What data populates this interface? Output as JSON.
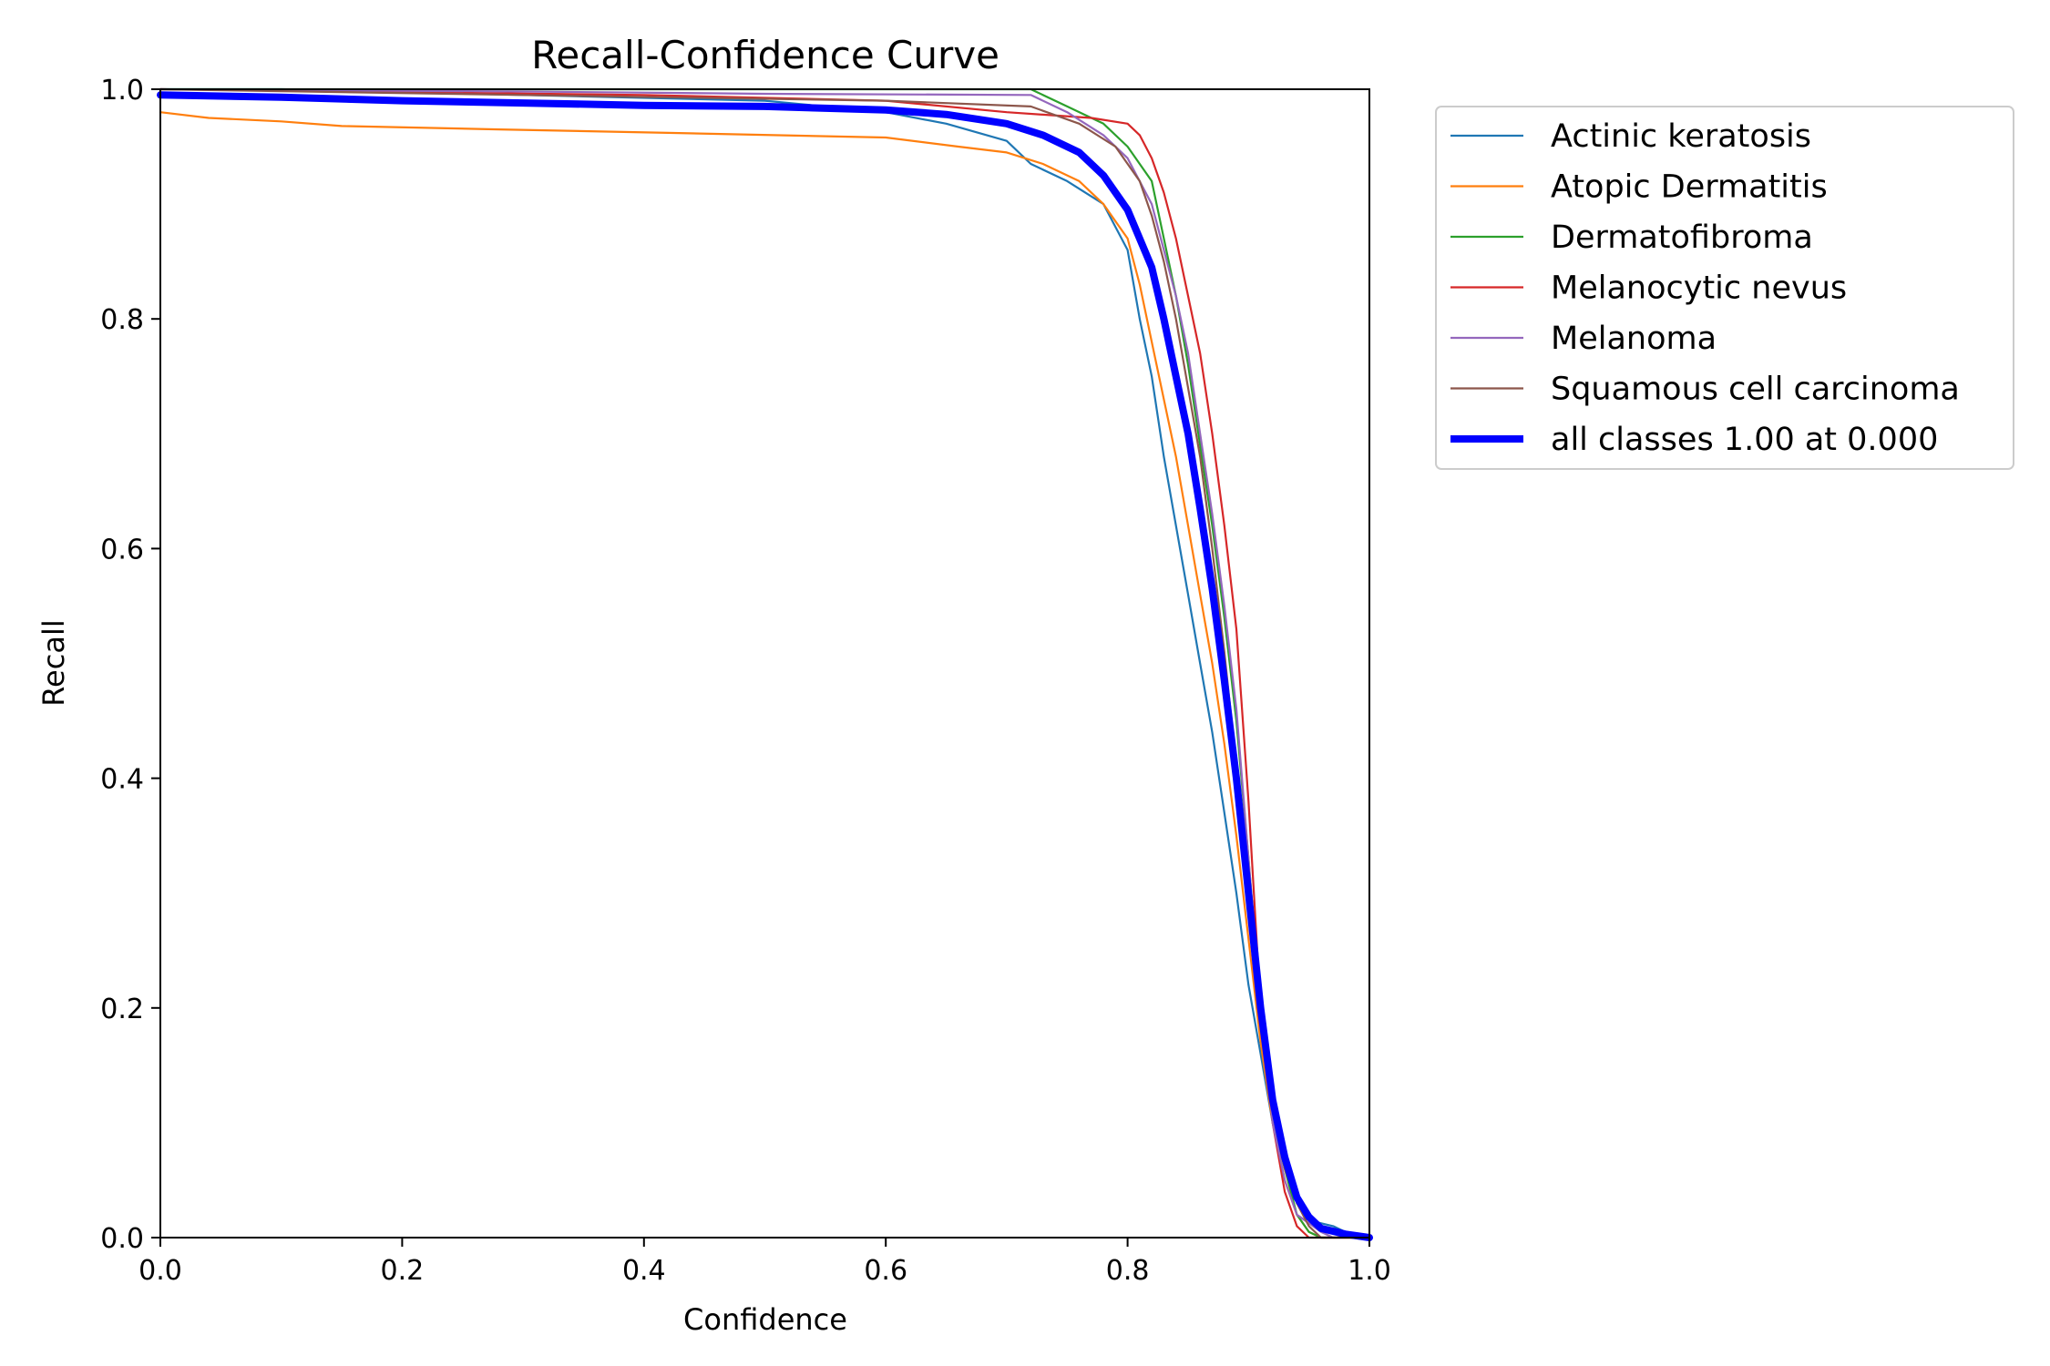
{
  "chart_data": {
    "type": "line",
    "title": "Recall-Confidence Curve",
    "xlabel": "Confidence",
    "ylabel": "Recall",
    "xlim": [
      0.0,
      1.0
    ],
    "ylim": [
      0.0,
      1.0
    ],
    "x_ticks": [
      "0.0",
      "0.2",
      "0.4",
      "0.6",
      "0.8",
      "1.0"
    ],
    "y_ticks": [
      "0.0",
      "0.2",
      "0.4",
      "0.6",
      "0.8",
      "1.0"
    ],
    "grid": false,
    "legend_placement": "outside-top-right",
    "series": [
      {
        "name": "Actinic keratosis",
        "color": "#1f77b4",
        "points": [
          [
            0.0,
            1.0
          ],
          [
            0.1,
            1.0
          ],
          [
            0.3,
            0.995
          ],
          [
            0.5,
            0.99
          ],
          [
            0.6,
            0.98
          ],
          [
            0.65,
            0.97
          ],
          [
            0.7,
            0.955
          ],
          [
            0.72,
            0.935
          ],
          [
            0.75,
            0.92
          ],
          [
            0.78,
            0.9
          ],
          [
            0.8,
            0.86
          ],
          [
            0.81,
            0.8
          ],
          [
            0.82,
            0.75
          ],
          [
            0.83,
            0.68
          ],
          [
            0.84,
            0.62
          ],
          [
            0.85,
            0.56
          ],
          [
            0.86,
            0.5
          ],
          [
            0.87,
            0.44
          ],
          [
            0.88,
            0.37
          ],
          [
            0.89,
            0.3
          ],
          [
            0.9,
            0.22
          ],
          [
            0.91,
            0.16
          ],
          [
            0.92,
            0.1
          ],
          [
            0.93,
            0.06
          ],
          [
            0.94,
            0.03
          ],
          [
            0.95,
            0.015
          ],
          [
            0.97,
            0.01
          ],
          [
            0.98,
            0.005
          ],
          [
            1.0,
            0.0
          ]
        ]
      },
      {
        "name": "Atopic Dermatitis",
        "color": "#ff7f0e",
        "points": [
          [
            0.0,
            0.98
          ],
          [
            0.04,
            0.975
          ],
          [
            0.1,
            0.972
          ],
          [
            0.15,
            0.968
          ],
          [
            0.28,
            0.965
          ],
          [
            0.42,
            0.962
          ],
          [
            0.6,
            0.958
          ],
          [
            0.66,
            0.95
          ],
          [
            0.7,
            0.945
          ],
          [
            0.73,
            0.935
          ],
          [
            0.76,
            0.92
          ],
          [
            0.78,
            0.9
          ],
          [
            0.8,
            0.87
          ],
          [
            0.81,
            0.83
          ],
          [
            0.82,
            0.78
          ],
          [
            0.83,
            0.73
          ],
          [
            0.84,
            0.68
          ],
          [
            0.85,
            0.62
          ],
          [
            0.86,
            0.56
          ],
          [
            0.87,
            0.5
          ],
          [
            0.88,
            0.43
          ],
          [
            0.89,
            0.35
          ],
          [
            0.9,
            0.26
          ],
          [
            0.91,
            0.17
          ],
          [
            0.92,
            0.1
          ],
          [
            0.93,
            0.05
          ],
          [
            0.94,
            0.02
          ],
          [
            0.95,
            0.005
          ],
          [
            0.96,
            0.0
          ],
          [
            1.0,
            0.0
          ]
        ]
      },
      {
        "name": "Dermatofibroma",
        "color": "#2ca02c",
        "points": [
          [
            0.0,
            1.0
          ],
          [
            0.3,
            1.0
          ],
          [
            0.6,
            1.0
          ],
          [
            0.72,
            1.0
          ],
          [
            0.75,
            0.985
          ],
          [
            0.78,
            0.97
          ],
          [
            0.8,
            0.95
          ],
          [
            0.82,
            0.92
          ],
          [
            0.83,
            0.87
          ],
          [
            0.84,
            0.82
          ],
          [
            0.85,
            0.76
          ],
          [
            0.86,
            0.69
          ],
          [
            0.87,
            0.62
          ],
          [
            0.88,
            0.54
          ],
          [
            0.89,
            0.45
          ],
          [
            0.9,
            0.33
          ],
          [
            0.91,
            0.2
          ],
          [
            0.92,
            0.11
          ],
          [
            0.93,
            0.06
          ],
          [
            0.94,
            0.02
          ],
          [
            0.95,
            0.005
          ],
          [
            0.96,
            0.0
          ],
          [
            1.0,
            0.0
          ]
        ]
      },
      {
        "name": "Melanocytic nevus",
        "color": "#d62728",
        "points": [
          [
            0.0,
            1.0
          ],
          [
            0.4,
            0.995
          ],
          [
            0.6,
            0.99
          ],
          [
            0.7,
            0.98
          ],
          [
            0.77,
            0.975
          ],
          [
            0.8,
            0.97
          ],
          [
            0.81,
            0.96
          ],
          [
            0.82,
            0.94
          ],
          [
            0.83,
            0.91
          ],
          [
            0.84,
            0.87
          ],
          [
            0.85,
            0.82
          ],
          [
            0.86,
            0.77
          ],
          [
            0.87,
            0.7
          ],
          [
            0.88,
            0.62
          ],
          [
            0.89,
            0.53
          ],
          [
            0.9,
            0.38
          ],
          [
            0.91,
            0.2
          ],
          [
            0.92,
            0.1
          ],
          [
            0.93,
            0.04
          ],
          [
            0.94,
            0.01
          ],
          [
            0.95,
            0.0
          ],
          [
            1.0,
            0.0
          ]
        ]
      },
      {
        "name": "Melanoma",
        "color": "#9467bd",
        "points": [
          [
            0.0,
            1.0
          ],
          [
            0.3,
            0.998
          ],
          [
            0.5,
            0.996
          ],
          [
            0.72,
            0.995
          ],
          [
            0.75,
            0.98
          ],
          [
            0.78,
            0.96
          ],
          [
            0.8,
            0.94
          ],
          [
            0.82,
            0.9
          ],
          [
            0.83,
            0.86
          ],
          [
            0.84,
            0.82
          ],
          [
            0.85,
            0.77
          ],
          [
            0.86,
            0.7
          ],
          [
            0.87,
            0.63
          ],
          [
            0.88,
            0.55
          ],
          [
            0.89,
            0.46
          ],
          [
            0.9,
            0.33
          ],
          [
            0.91,
            0.2
          ],
          [
            0.92,
            0.1
          ],
          [
            0.93,
            0.05
          ],
          [
            0.94,
            0.02
          ],
          [
            0.96,
            0.005
          ],
          [
            0.97,
            0.0
          ],
          [
            1.0,
            0.0
          ]
        ]
      },
      {
        "name": "Squamous cell carcinoma",
        "color": "#8c564b",
        "points": [
          [
            0.0,
            1.0
          ],
          [
            0.3,
            0.995
          ],
          [
            0.6,
            0.99
          ],
          [
            0.72,
            0.985
          ],
          [
            0.76,
            0.97
          ],
          [
            0.79,
            0.95
          ],
          [
            0.81,
            0.92
          ],
          [
            0.82,
            0.89
          ],
          [
            0.83,
            0.85
          ],
          [
            0.84,
            0.8
          ],
          [
            0.85,
            0.74
          ],
          [
            0.86,
            0.68
          ],
          [
            0.87,
            0.6
          ],
          [
            0.88,
            0.51
          ],
          [
            0.89,
            0.41
          ],
          [
            0.9,
            0.3
          ],
          [
            0.91,
            0.19
          ],
          [
            0.92,
            0.11
          ],
          [
            0.93,
            0.06
          ],
          [
            0.94,
            0.03
          ],
          [
            0.95,
            0.01
          ],
          [
            0.96,
            0.0
          ],
          [
            1.0,
            0.0
          ]
        ]
      },
      {
        "name": "all classes 1.00 at 0.000",
        "color": "#0000ff",
        "bold": true,
        "points": [
          [
            0.0,
            0.995
          ],
          [
            0.1,
            0.993
          ],
          [
            0.2,
            0.99
          ],
          [
            0.3,
            0.988
          ],
          [
            0.4,
            0.986
          ],
          [
            0.5,
            0.985
          ],
          [
            0.6,
            0.982
          ],
          [
            0.65,
            0.978
          ],
          [
            0.7,
            0.97
          ],
          [
            0.73,
            0.96
          ],
          [
            0.76,
            0.945
          ],
          [
            0.78,
            0.925
          ],
          [
            0.8,
            0.895
          ],
          [
            0.82,
            0.845
          ],
          [
            0.83,
            0.8
          ],
          [
            0.84,
            0.75
          ],
          [
            0.85,
            0.7
          ],
          [
            0.86,
            0.635
          ],
          [
            0.87,
            0.565
          ],
          [
            0.88,
            0.485
          ],
          [
            0.89,
            0.4
          ],
          [
            0.9,
            0.3
          ],
          [
            0.91,
            0.2
          ],
          [
            0.92,
            0.12
          ],
          [
            0.93,
            0.07
          ],
          [
            0.94,
            0.035
          ],
          [
            0.95,
            0.018
          ],
          [
            0.96,
            0.008
          ],
          [
            0.98,
            0.003
          ],
          [
            1.0,
            0.0
          ]
        ]
      }
    ]
  }
}
